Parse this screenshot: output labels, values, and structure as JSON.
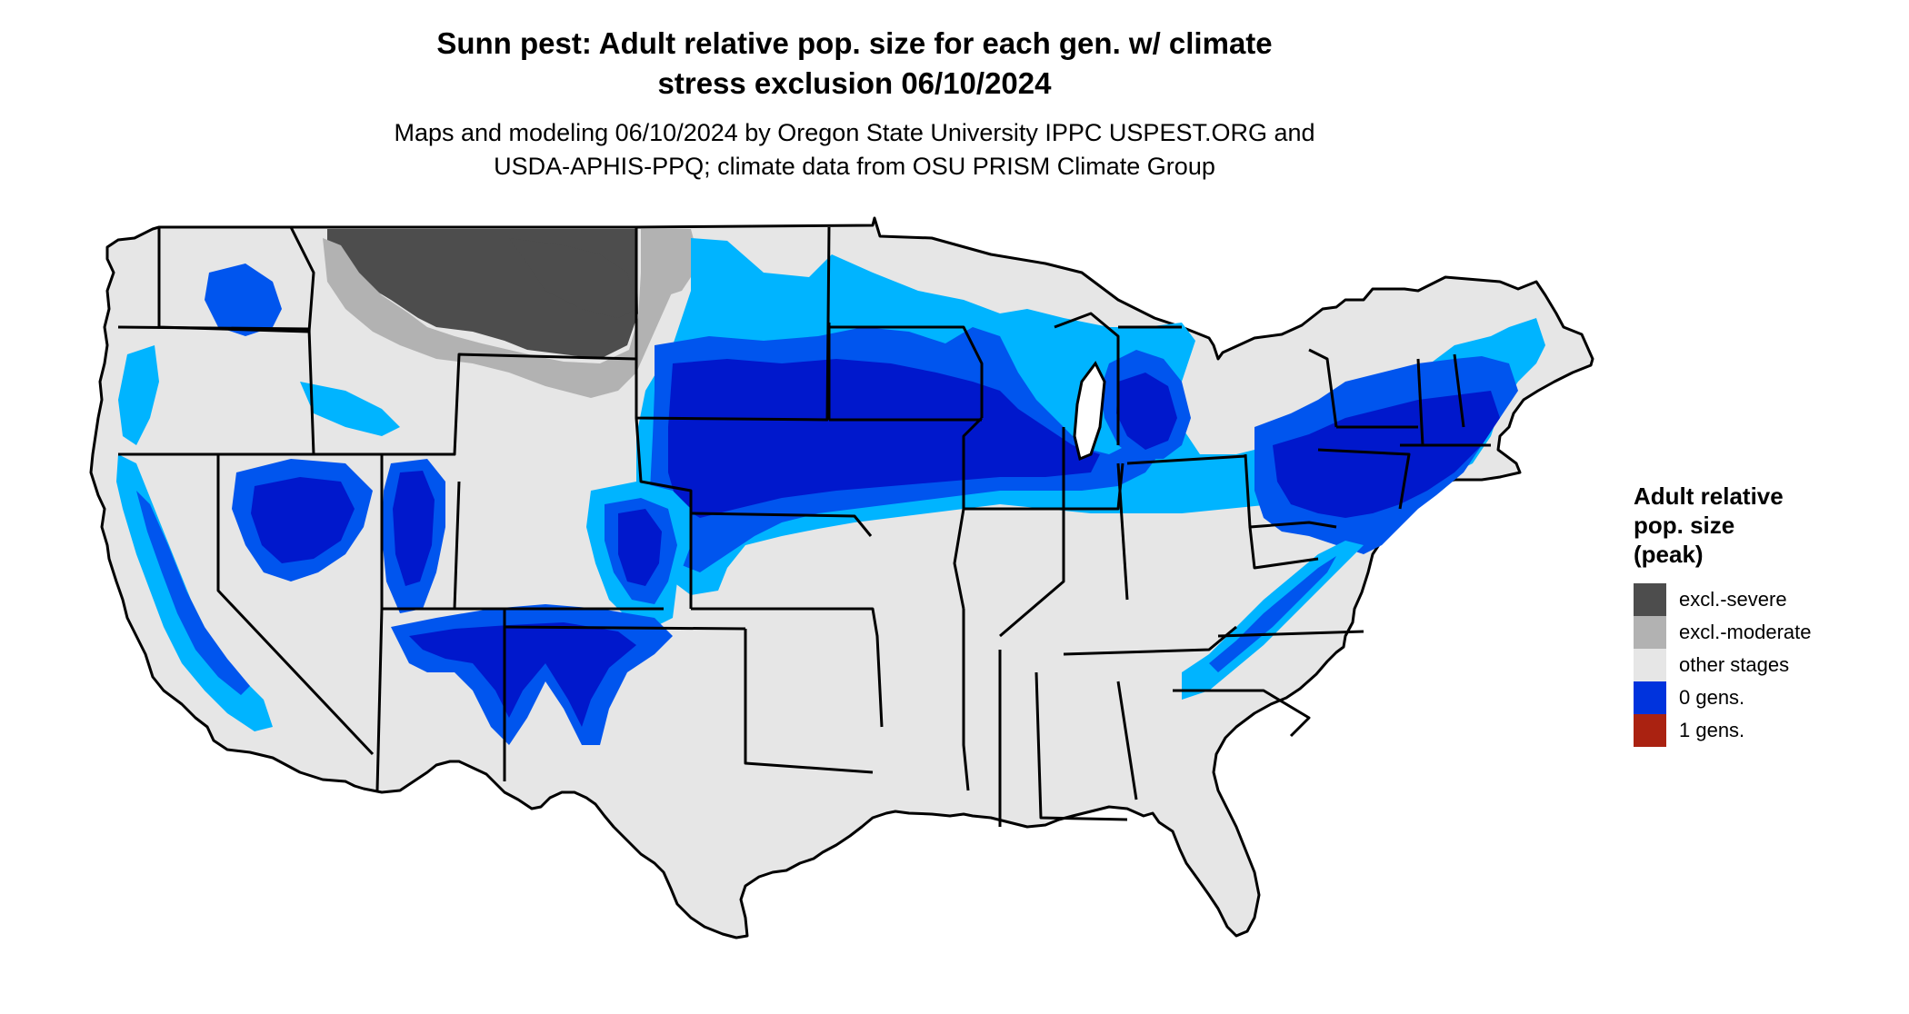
{
  "title": {
    "line1": "Sunn pest: Adult relative pop. size for each gen. w/ climate",
    "line2": "stress exclusion 06/10/2024"
  },
  "subtitle": {
    "line1": "Maps and modeling 06/10/2024 by Oregon State University IPPC USPEST.ORG and",
    "line2": "USDA-APHIS-PPQ; climate data from OSU PRISM Climate Group"
  },
  "legend": {
    "title_line1": "Adult relative",
    "title_line2": "pop. size",
    "title_line3": "(peak)",
    "items": [
      {
        "label": "excl.-severe",
        "color": "#4d4d4d"
      },
      {
        "label": "excl.-moderate",
        "color": "#b2b2b2"
      },
      {
        "label": "other stages",
        "color": "#e6e6e6"
      },
      {
        "label": "0 gens.",
        "color": "#0033dd"
      },
      {
        "label": "1 gens.",
        "color": "#aa2211"
      }
    ]
  },
  "map_colors": {
    "background_land": "#e6e6e6",
    "light_blue": "#00b4ff",
    "mid_blue": "#0055ee",
    "dark_blue": "#0018cc",
    "excl_severe": "#4d4d4d",
    "excl_moderate": "#b2b2b2",
    "border": "#000000"
  }
}
